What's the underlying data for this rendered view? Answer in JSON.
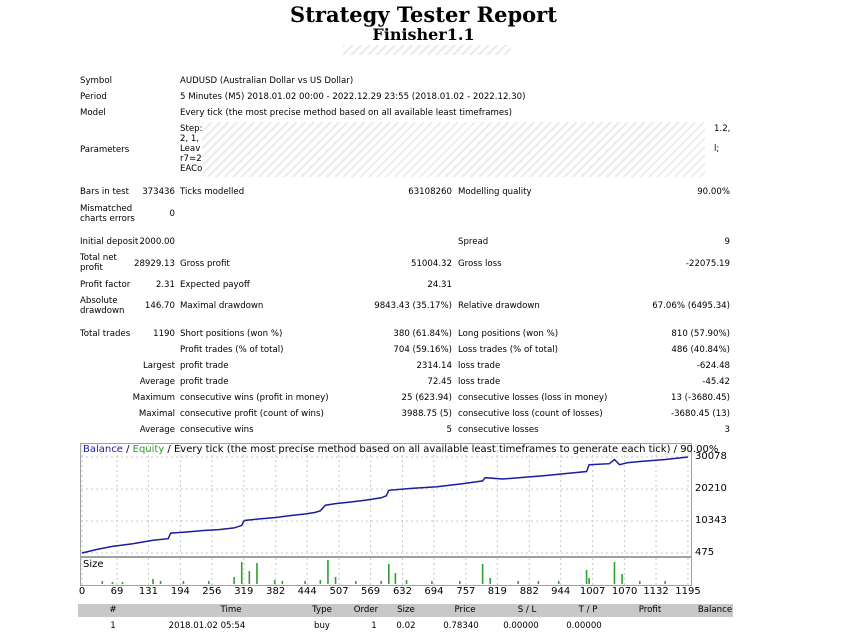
{
  "report": {
    "title": "Strategy Tester Report",
    "subtitle": "Finisher1.1"
  },
  "info": {
    "symbol_label": "Symbol",
    "symbol_value": "AUDUSD (Australian Dollar vs US Dollar)",
    "period_label": "Period",
    "period_value": "5 Minutes (M5) 2018.01.02 00:00 - 2022.12.29 23:55 (2018.01.02 - 2022.12.30)",
    "model_label": "Model",
    "model_value": "Every tick (the most precise method based on all available least timeframes)",
    "parameters_label": "Parameters",
    "param_lines": [
      "Step:",
      "2, 1,",
      "Leav",
      "r7=2",
      "EACo"
    ],
    "param_right_1": "1.2,",
    "param_right_2": "l;"
  },
  "stats": {
    "bars_label": "Bars in test",
    "bars_value": "373436",
    "ticks_label": "Ticks modelled",
    "ticks_value": "63108260",
    "quality_label": "Modelling quality",
    "quality_value": "90.00%",
    "mismatch_label_1": "Mismatched",
    "mismatch_label_2": "charts errors",
    "mismatch_value": "0",
    "deposit_label": "Initial deposit",
    "deposit_value": "2000.00",
    "spread_label": "Spread",
    "spread_value": "9",
    "netprofit_label_1": "Total net",
    "netprofit_label_2": "profit",
    "netprofit_value": "28929.13",
    "grossprofit_label": "Gross profit",
    "grossprofit_value": "51004.32",
    "grossloss_label": "Gross loss",
    "grossloss_value": "-22075.19",
    "pf_label": "Profit factor",
    "pf_value": "2.31",
    "payoff_label": "Expected payoff",
    "payoff_value": "24.31",
    "absdd_label_1": "Absolute",
    "absdd_label_2": "drawdown",
    "absdd_value": "146.70",
    "maxdd_label": "Maximal drawdown",
    "maxdd_value": "9843.43 (35.17%)",
    "reldd_label": "Relative drawdown",
    "reldd_value": "67.06% (6495.34)",
    "trades_label": "Total trades",
    "trades_value": "1190",
    "short_label": "Short positions (won %)",
    "short_value": "380 (61.84%)",
    "long_label": "Long positions (won %)",
    "long_value": "810 (57.90%)",
    "profit_trades_label": "Profit trades (% of total)",
    "profit_trades_value": "704 (59.16%)",
    "loss_trades_label": "Loss trades (% of total)",
    "loss_trades_value": "486 (40.84%)",
    "largest_label": "Largest",
    "largest_profit_label": "profit trade",
    "largest_profit_value": "2314.14",
    "largest_loss_label": "loss trade",
    "largest_loss_value": "-624.48",
    "average_label": "Average",
    "average_profit_label": "profit trade",
    "average_profit_value": "72.45",
    "average_loss_label": "loss trade",
    "average_loss_value": "-45.42",
    "maximum_label": "Maximum",
    "max_cons_wins_label": "consecutive wins (profit in money)",
    "max_cons_wins_value": "25 (623.94)",
    "max_cons_losses_label": "consecutive losses (loss in money)",
    "max_cons_losses_value": "13 (-3680.45)",
    "maximal_label": "Maximal",
    "maximal_profit_label": "consecutive profit (count of wins)",
    "maximal_profit_value": "3988.75 (5)",
    "maximal_loss_label": "consecutive loss (count of losses)",
    "maximal_loss_value": "-3680.45 (13)",
    "average2_label": "Average",
    "avg_cons_wins_label": "consecutive wins",
    "avg_cons_wins_value": "5",
    "avg_cons_losses_label": "consecutive losses",
    "avg_cons_losses_value": "3"
  },
  "chart_data": {
    "type": "line",
    "legend_balance": "Balance",
    "legend_sep": " / ",
    "legend_equity": "Equity",
    "legend_rest": " / Every tick (the most precise method based on all available least timeframes to generate each tick) / 90.00%",
    "size_label": "Size",
    "y_ticks": [
      475,
      10343,
      20210,
      30078
    ],
    "x_ticks": [
      "0",
      "69",
      "131",
      "194",
      "256",
      "319",
      "382",
      "444",
      "507",
      "569",
      "632",
      "694",
      "757",
      "819",
      "882",
      "944",
      "1007",
      "1070",
      "1132",
      "1195"
    ],
    "ylim": [
      475,
      30078
    ],
    "xlim": [
      0,
      1195
    ],
    "balance_series": [
      [
        0,
        475
      ],
      [
        30,
        1600
      ],
      [
        60,
        2500
      ],
      [
        100,
        3300
      ],
      [
        140,
        4400
      ],
      [
        170,
        4900
      ],
      [
        175,
        6600
      ],
      [
        200,
        6900
      ],
      [
        240,
        7400
      ],
      [
        270,
        7700
      ],
      [
        300,
        8200
      ],
      [
        315,
        9000
      ],
      [
        320,
        10500
      ],
      [
        350,
        11000
      ],
      [
        380,
        11400
      ],
      [
        410,
        12000
      ],
      [
        440,
        12500
      ],
      [
        460,
        13000
      ],
      [
        470,
        13500
      ],
      [
        480,
        15200
      ],
      [
        500,
        15700
      ],
      [
        530,
        16200
      ],
      [
        560,
        16800
      ],
      [
        590,
        17500
      ],
      [
        600,
        18100
      ],
      [
        605,
        19800
      ],
      [
        635,
        20200
      ],
      [
        650,
        20400
      ],
      [
        700,
        20900
      ],
      [
        750,
        21800
      ],
      [
        790,
        22700
      ],
      [
        795,
        23700
      ],
      [
        830,
        23300
      ],
      [
        870,
        23800
      ],
      [
        910,
        24300
      ],
      [
        950,
        24900
      ],
      [
        995,
        25600
      ],
      [
        1000,
        27700
      ],
      [
        1040,
        28000
      ],
      [
        1050,
        29300
      ],
      [
        1060,
        27700
      ],
      [
        1075,
        28300
      ],
      [
        1100,
        28700
      ],
      [
        1150,
        29300
      ],
      [
        1195,
        30078
      ]
    ],
    "colors": {
      "balance": "#1c1c9c",
      "equity": "#2ea02e",
      "size": "#2ea02e"
    },
    "size_spikes": [
      [
        40,
        3
      ],
      [
        60,
        2
      ],
      [
        80,
        2
      ],
      [
        140,
        5
      ],
      [
        155,
        3
      ],
      [
        200,
        3
      ],
      [
        250,
        3
      ],
      [
        300,
        7
      ],
      [
        315,
        22
      ],
      [
        330,
        13
      ],
      [
        345,
        21
      ],
      [
        380,
        4
      ],
      [
        395,
        3
      ],
      [
        440,
        3
      ],
      [
        470,
        4
      ],
      [
        485,
        24
      ],
      [
        500,
        7
      ],
      [
        540,
        3
      ],
      [
        590,
        3
      ],
      [
        605,
        20
      ],
      [
        618,
        11
      ],
      [
        640,
        4
      ],
      [
        690,
        3
      ],
      [
        745,
        3
      ],
      [
        790,
        20
      ],
      [
        805,
        6
      ],
      [
        860,
        3
      ],
      [
        900,
        3
      ],
      [
        940,
        3
      ],
      [
        995,
        14
      ],
      [
        1000,
        6
      ],
      [
        1050,
        22
      ],
      [
        1065,
        10
      ],
      [
        1100,
        3
      ],
      [
        1150,
        3
      ]
    ]
  },
  "trades_table": {
    "headers": [
      "#",
      "Time",
      "Type",
      "Order",
      "Size",
      "Price",
      "S / L",
      "T / P",
      "Profit",
      "Balance"
    ],
    "rows": [
      [
        "1",
        "2018.01.02 05:54",
        "buy",
        "1",
        "0.02",
        "0.78340",
        "0.00000",
        "0.00000",
        "",
        ""
      ]
    ]
  }
}
